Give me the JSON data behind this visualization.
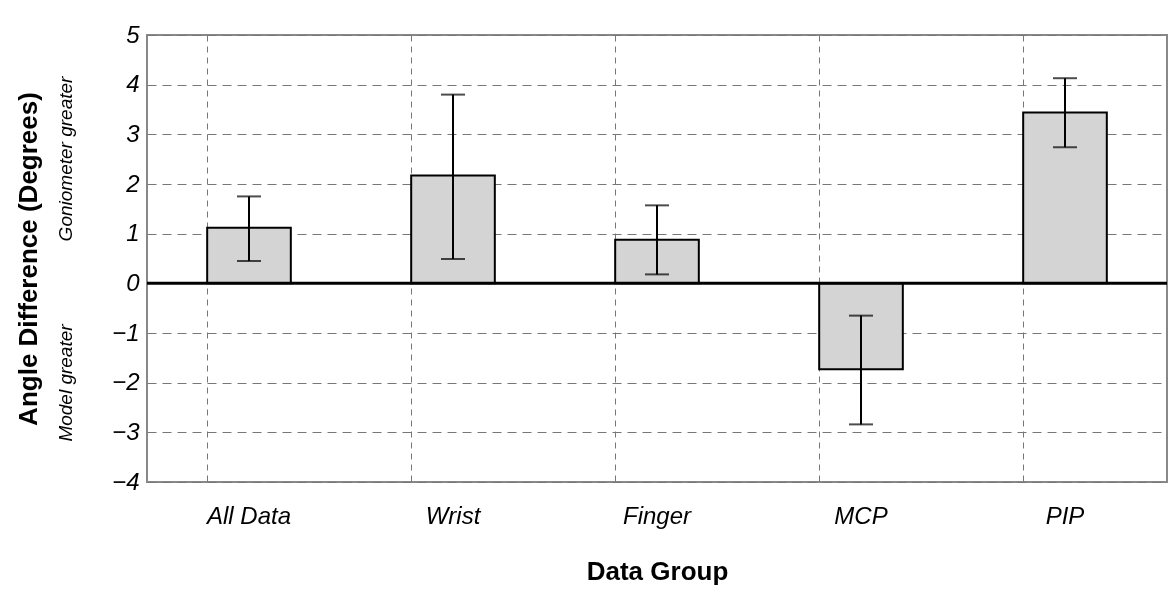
{
  "chart_data": {
    "type": "bar",
    "xlabel": "Data Group",
    "ylabel": "Angle Difference (Degrees)",
    "categories": [
      "All Data",
      "Wrist",
      "Finger",
      "MCP",
      "PIP"
    ],
    "values": [
      1.12,
      2.17,
      0.88,
      -1.73,
      3.44
    ],
    "errors": [
      [
        0.45,
        1.75
      ],
      [
        0.49,
        3.8
      ],
      [
        0.18,
        1.57
      ],
      [
        -2.84,
        -0.65
      ],
      [
        2.74,
        4.13
      ]
    ],
    "color": "#d4d4d4",
    "ylim": [
      -4,
      5
    ],
    "yticks": [
      -4,
      -3,
      -2,
      -1,
      0,
      1,
      2,
      3,
      4,
      5
    ],
    "grid": true,
    "ref_lines": [
      {
        "axis": "y",
        "value": 0,
        "color": "#000000"
      }
    ],
    "annotations": [
      "Goniometer greater",
      "Model greater"
    ]
  }
}
